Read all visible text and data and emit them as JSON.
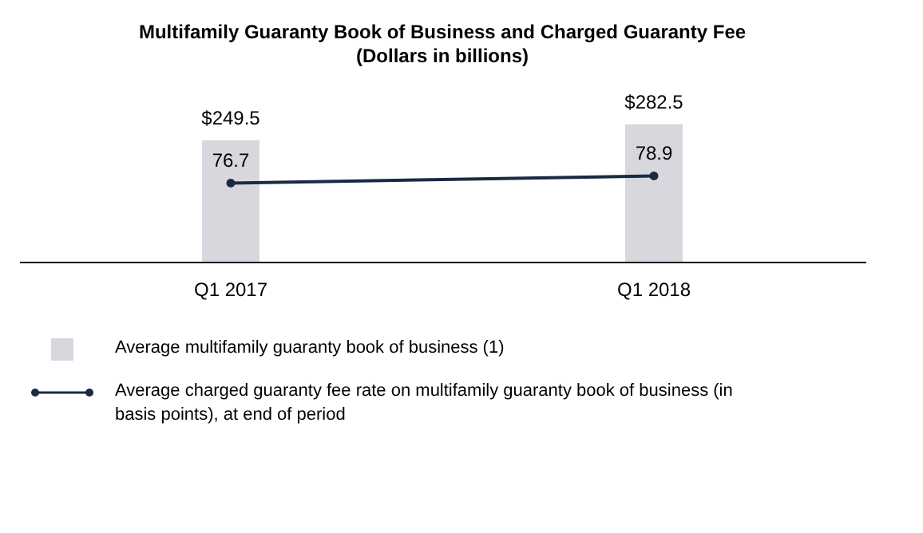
{
  "chart_data": {
    "type": "bar",
    "title": "Multifamily Guaranty Book of Business and Charged Guaranty Fee",
    "subtitle": "(Dollars in billions)",
    "categories": [
      "Q1 2017",
      "Q1 2018"
    ],
    "series": [
      {
        "name": "Average multifamily guaranty book of business (1)",
        "color": "#d9d7de",
        "values": [
          249.5,
          282.5
        ],
        "value_labels": [
          "$249.5",
          "$282.5"
        ]
      },
      {
        "name": "Average charged guaranty fee rate on multifamily guaranty book of business (in basis points), at end of period",
        "type": "line",
        "axis": "y2",
        "color": "#1a2a44",
        "marker": "circle",
        "values": [
          76.7,
          78.9
        ],
        "value_labels": [
          "76.7",
          "78.9"
        ]
      }
    ],
    "grid": false,
    "legend": "bottom"
  }
}
